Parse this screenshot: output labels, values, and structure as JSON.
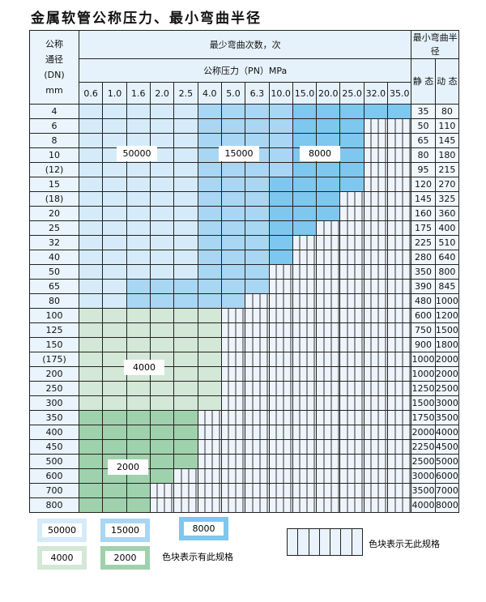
{
  "title": "金属软管公称压力、最小弯曲半径",
  "header": {
    "dn_label": [
      "公称",
      "通径",
      "(DN)",
      "mm"
    ],
    "cycles_label": "最少弯曲次数，次",
    "pressure_label": "公称压力（PN）MPa",
    "radius_label": "最小弯曲半径",
    "static_label": "静 态",
    "dynamic_label": "动 态",
    "pressures": [
      "0.6",
      "1.0",
      "1.6",
      "2.0",
      "2.5",
      "4.0",
      "5.0",
      "6.3",
      "10.0",
      "15.0",
      "20.0",
      "25.0",
      "32.0",
      "35.0"
    ]
  },
  "zones": {
    "A": {
      "value": "50000",
      "color": "#d6ebf9"
    },
    "B": {
      "value": "15000",
      "color": "#a9d6f3"
    },
    "C": {
      "value": "8000",
      "color": "#7ec7ee"
    },
    "D": {
      "value": "4000",
      "color": "#d3e8d6"
    },
    "E": {
      "value": "2000",
      "color": "#9fd1ad"
    }
  },
  "rows": [
    {
      "dn": "4",
      "static": "35",
      "dynamic": "80",
      "spec": "AAAAABBBBCCCCC"
    },
    {
      "dn": "6",
      "static": "50",
      "dynamic": "110",
      "spec": "AAAAABBBBCCC.."
    },
    {
      "dn": "8",
      "static": "65",
      "dynamic": "145",
      "spec": "AAAAABBBBCCC.."
    },
    {
      "dn": "10",
      "static": "80",
      "dynamic": "180",
      "spec": "AAAAABBBBCCC.."
    },
    {
      "dn": "(12)",
      "static": "95",
      "dynamic": "215",
      "spec": "AAAAABBBBCCC.."
    },
    {
      "dn": "15",
      "static": "120",
      "dynamic": "270",
      "spec": "AAAAABBBCCCC.."
    },
    {
      "dn": "(18)",
      "static": "145",
      "dynamic": "325",
      "spec": "AAAAABBBCCC..."
    },
    {
      "dn": "20",
      "static": "160",
      "dynamic": "360",
      "spec": "AAAAABBBCCC..."
    },
    {
      "dn": "25",
      "static": "175",
      "dynamic": "400",
      "spec": "AAAAABBBCC...."
    },
    {
      "dn": "32",
      "static": "225",
      "dynamic": "510",
      "spec": "AAAAABBBC....."
    },
    {
      "dn": "40",
      "static": "280",
      "dynamic": "640",
      "spec": "AAAAABBBC....."
    },
    {
      "dn": "50",
      "static": "350",
      "dynamic": "800",
      "spec": "AAAAABBB......"
    },
    {
      "dn": "65",
      "static": "390",
      "dynamic": "845",
      "spec": "AABBBBBB......"
    },
    {
      "dn": "80",
      "static": "480",
      "dynamic": "1000",
      "spec": "AABBBBB......."
    },
    {
      "dn": "100",
      "static": "600",
      "dynamic": "1200",
      "spec": "DDDDDD........"
    },
    {
      "dn": "125",
      "static": "750",
      "dynamic": "1500",
      "spec": "DDDDDD........"
    },
    {
      "dn": "150",
      "static": "900",
      "dynamic": "1800",
      "spec": "DDDDDD........"
    },
    {
      "dn": "(175)",
      "static": "1000",
      "dynamic": "2000",
      "spec": "DDDDDD........"
    },
    {
      "dn": "200",
      "static": "1000",
      "dynamic": "2000",
      "spec": "DDDDDD........"
    },
    {
      "dn": "250",
      "static": "1250",
      "dynamic": "2500",
      "spec": "DDDDDD........"
    },
    {
      "dn": "300",
      "static": "1500",
      "dynamic": "3000",
      "spec": "DDDDDD........"
    },
    {
      "dn": "350",
      "static": "1750",
      "dynamic": "3500",
      "spec": "EEEEE........."
    },
    {
      "dn": "400",
      "static": "2000",
      "dynamic": "4000",
      "spec": "EEEEE........."
    },
    {
      "dn": "450",
      "static": "2250",
      "dynamic": "4500",
      "spec": "EEEEE........."
    },
    {
      "dn": "500",
      "static": "2500",
      "dynamic": "5000",
      "spec": "EEEEE........."
    },
    {
      "dn": "600",
      "static": "3000",
      "dynamic": "6000",
      "spec": "EEEE.........."
    },
    {
      "dn": "700",
      "static": "3500",
      "dynamic": "7000",
      "spec": "EEE..........."
    },
    {
      "dn": "800",
      "static": "4000",
      "dynamic": "8000",
      "spec": "EEE..........."
    }
  ],
  "legend": {
    "has_spec_text": "色块表示有此规格",
    "no_spec_text": "色块表示无此规格"
  }
}
